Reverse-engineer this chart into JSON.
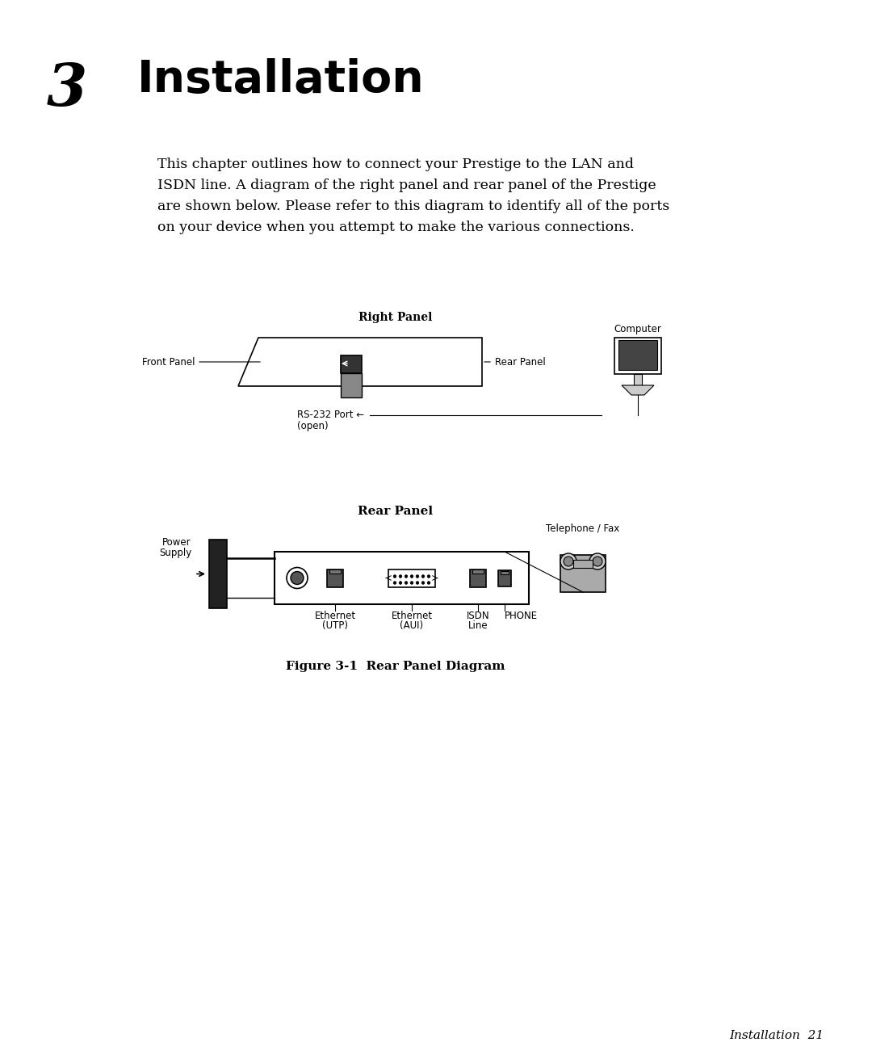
{
  "bg_color": "#ffffff",
  "chapter_number": "3",
  "chapter_title": "Installation",
  "body_line1": "This chapter outlines how to connect your Prestige to the LAN and",
  "body_line2": "ISDN line. A diagram of the right panel and rear panel of the Prestige",
  "body_line3": "are shown below. Please refer to this diagram to identify all of the ports",
  "body_line4": "on your device when you attempt to make the various connections.",
  "right_panel_label": "Right Panel",
  "rear_panel_label": "Rear Panel",
  "figure_caption": "Figure 3-1  Rear Panel Diagram",
  "footer_text": "Installation  21",
  "front_panel_label": "Front Panel",
  "rear_panel_arrow_label": "Rear Panel",
  "computer_label": "Computer",
  "power_supply_label1": "Power",
  "power_supply_label2": "Supply",
  "telephone_label": "Telephone / Fax",
  "ethernet_utp_label1": "Ethernet",
  "ethernet_utp_label2": "(UTP)",
  "ethernet_aui_label1": "Ethernet",
  "ethernet_aui_label2": "(AUI)",
  "isdn_label1": "ISDN",
  "isdn_label2": "Line",
  "phone_label": "PHONE",
  "rs232_label1": "RS-232 Port ←",
  "rs232_label2": "(open)"
}
